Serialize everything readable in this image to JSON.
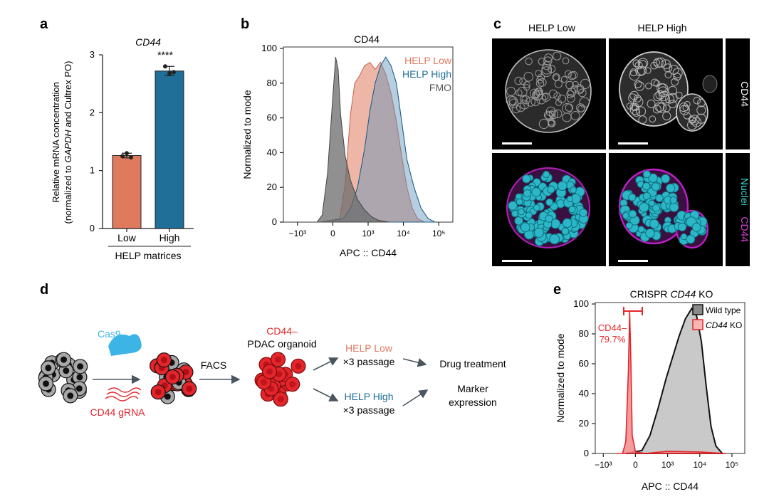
{
  "panels": {
    "a": {
      "letter": "a",
      "ylabel_line1": "Relative mRNA concentration",
      "ylabel_line2_pre": "(normalized to ",
      "ylabel_line2_gene": "GAPDH",
      "ylabel_line2_post": " and Cultrex PO)",
      "group_label": "HELP matrices",
      "significance": "****"
    },
    "b": {
      "letter": "b"
    },
    "c": {
      "letter": "c",
      "col_low": "HELP Low",
      "col_high": "HELP High",
      "row_cd44": "CD44",
      "row_nuclei": "Nuclei",
      "row_cd44_magenta": "CD44"
    },
    "d": {
      "letter": "d",
      "cas9": "Cas9",
      "gRNA": "CD44 gRNA",
      "facs": "FACS",
      "organoid_top": "CD44–",
      "organoid_bottom": "PDAC organoid",
      "low_label": "HELP Low",
      "low_pass": "×3 passage",
      "high_label": "HELP High",
      "high_pass": "×3 passage",
      "drug": "Drug treatment",
      "marker1": "Marker",
      "marker2": "expression"
    },
    "e": {
      "letter": "e",
      "gate_label": "CD44–",
      "gate_value": "79.7%"
    }
  },
  "colors": {
    "low": "#e07a5f",
    "high": "#1f6f99",
    "fmo": "#555555",
    "red": "#e3262b",
    "cyan": "#3cb4e6",
    "arrow": "#4a5560",
    "magenta": "#d000d0"
  },
  "chart_data": [
    {
      "id": "a",
      "type": "bar",
      "title": "CD44",
      "categories": [
        "Low",
        "High"
      ],
      "values": [
        1.26,
        2.72
      ],
      "error": [
        0.04,
        0.08
      ],
      "points": [
        [
          1.25,
          1.3,
          1.23
        ],
        [
          2.8,
          2.68,
          2.7
        ]
      ],
      "ylim": [
        0,
        3
      ],
      "yticks": [
        "0",
        "1",
        "2",
        "3"
      ],
      "grid": false
    },
    {
      "id": "b",
      "type": "area",
      "title": "CD44",
      "xlabel": "APC :: CD44",
      "ylabel": "Normalized to mode",
      "ylim": [
        0,
        100
      ],
      "yticks": [
        "0",
        "20",
        "40",
        "60",
        "80",
        "100"
      ],
      "xtick_labels": [
        "−10³",
        "0",
        "10³",
        "10⁴",
        "10⁵"
      ],
      "legend_position": "top-right",
      "series": [
        {
          "name": "HELP Low",
          "x": [
            -0.35,
            0.2,
            0.35,
            0.5,
            0.62,
            0.75,
            0.9,
            1.05,
            1.2,
            1.35,
            1.5,
            1.65,
            1.8,
            1.95,
            2.1,
            2.25,
            2.4,
            2.6
          ],
          "values": [
            0,
            2,
            22,
            62,
            80,
            84,
            90,
            92,
            88,
            92,
            85,
            74,
            58,
            38,
            20,
            8,
            2,
            0
          ]
        },
        {
          "name": "HELP High",
          "x": [
            -0.35,
            0.3,
            0.5,
            0.7,
            0.9,
            1.05,
            1.2,
            1.35,
            1.5,
            1.65,
            1.8,
            1.95,
            2.1,
            2.3,
            2.5,
            2.7,
            2.9
          ],
          "values": [
            0,
            2,
            8,
            20,
            42,
            64,
            80,
            90,
            95,
            90,
            80,
            58,
            36,
            20,
            8,
            2,
            0
          ]
        },
        {
          "name": "FMO",
          "x": [
            -0.45,
            -0.3,
            -0.15,
            0.0,
            0.08,
            0.15,
            0.22,
            0.35,
            0.5,
            0.7,
            0.9,
            1.1,
            1.3,
            1.6
          ],
          "values": [
            0,
            4,
            28,
            72,
            95,
            88,
            62,
            38,
            24,
            13,
            7,
            3,
            1,
            0
          ]
        }
      ]
    },
    {
      "id": "e",
      "type": "area",
      "title": "CRISPR CD44 KO",
      "xlabel": "APC :: CD44",
      "ylabel": "Normalized to mode",
      "ylim": [
        0,
        100
      ],
      "yticks": [
        "0",
        "20",
        "40",
        "60",
        "80",
        "100"
      ],
      "xtick_labels": [
        "−10³",
        "0",
        "10³",
        "10⁴",
        "10⁵"
      ],
      "legend_position": "top-right",
      "gate_percent": 79.7,
      "series": [
        {
          "name": "Wild type",
          "x": [
            -0.3,
            0.2,
            0.45,
            0.7,
            0.95,
            1.15,
            1.35,
            1.55,
            1.75,
            1.9,
            2.05,
            2.2,
            2.35,
            2.5,
            2.7
          ],
          "values": [
            0,
            2,
            12,
            30,
            50,
            64,
            78,
            90,
            97,
            92,
            75,
            45,
            18,
            5,
            0
          ]
        },
        {
          "name": "CD44 KO",
          "x": [
            -0.6,
            -0.4,
            -0.3,
            -0.22,
            -0.18,
            -0.14,
            -0.1,
            0.0,
            0.3,
            1.0,
            2.0,
            2.8
          ],
          "values": [
            0,
            0,
            8,
            55,
            95,
            60,
            12,
            1,
            0,
            1.5,
            1,
            0
          ]
        }
      ]
    }
  ]
}
